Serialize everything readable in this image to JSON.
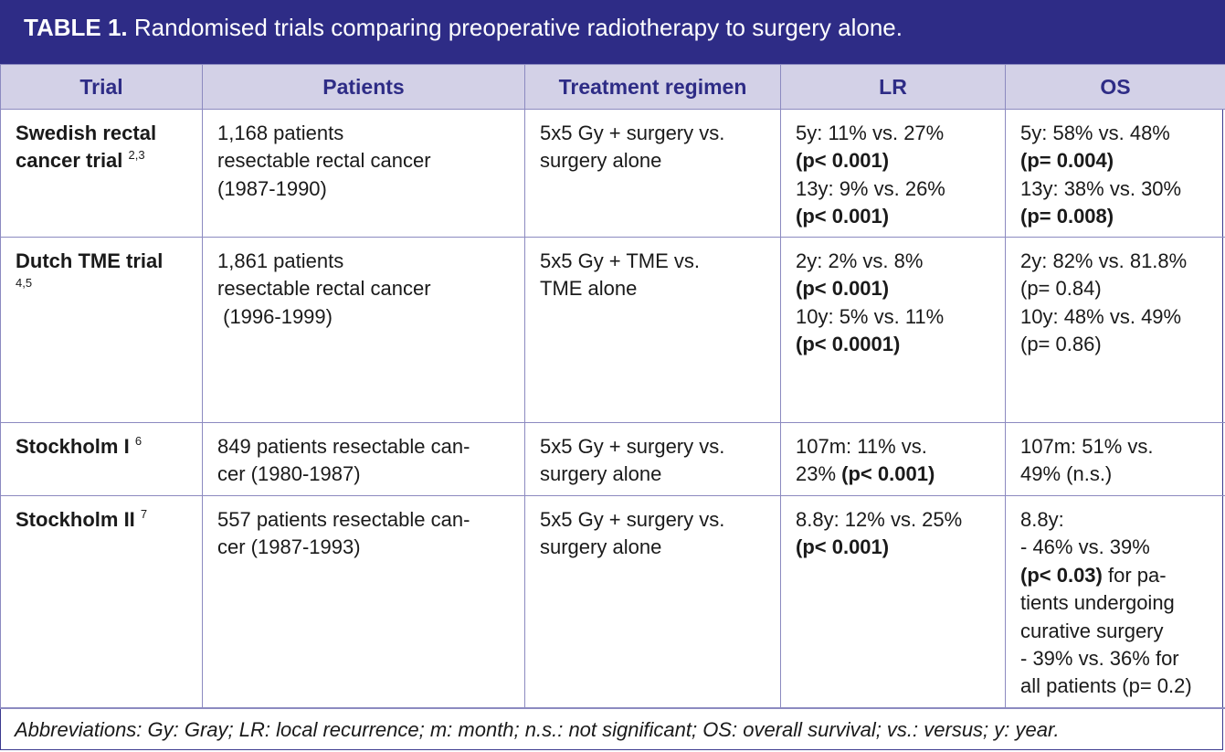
{
  "title": {
    "label": "TABLE 1.",
    "text": "Randomised trials comparing preoperative radiotherapy to surgery alone."
  },
  "headers": [
    "Trial",
    "Patients",
    "Treatment regimen",
    "LR",
    "OS"
  ],
  "rows": [
    {
      "trial_lines": [
        "Swedish rectal",
        "cancer trial"
      ],
      "trial_refs": "2,3",
      "patients": [
        "1,168 patients",
        "resectable rectal cancer",
        "(1987-1990)"
      ],
      "treatment": [
        "5x5 Gy + surgery vs.",
        "surgery alone"
      ],
      "lr": [
        "5y: 11% vs. 27%",
        "(p< 0.001)",
        "13y: 9% vs. 26%",
        "(p< 0.001)"
      ],
      "os": [
        "5y: 58% vs. 48%",
        "(p= 0.004)",
        "13y: 38% vs. 30%",
        "(p= 0.008)"
      ]
    },
    {
      "trial_lines": [
        "Dutch TME trial"
      ],
      "trial_refs": "4,5",
      "patients": [
        "1,861 patients",
        "resectable rectal cancer",
        " (1996-1999)"
      ],
      "treatment": [
        "5x5 Gy + TME vs.",
        "TME alone"
      ],
      "lr": [
        "2y: 2% vs. 8%",
        "(p< 0.001)",
        "10y: 5% vs. 11%",
        "(p< 0.0001)"
      ],
      "os": [
        "2y: 82% vs. 81.8%",
        "(p= 0.84)",
        "10y: 48% vs. 49%",
        "(p= 0.86)"
      ]
    },
    {
      "trial_lines": [
        "Stockholm I"
      ],
      "trial_refs": "6",
      "patients": [
        "849 patients resectable can-",
        "cer (1980-1987)"
      ],
      "treatment": [
        "5x5 Gy + surgery vs.",
        "surgery alone"
      ],
      "lr": [
        "107m: 11% vs.",
        "23%",
        "(p< 0.001)"
      ],
      "os": [
        "107m: 51% vs.",
        "49% (n.s.)"
      ]
    },
    {
      "trial_lines": [
        "Stockholm II"
      ],
      "trial_refs": "7",
      "patients": [
        "557 patients resectable can-",
        "cer (1987-1993)"
      ],
      "treatment": [
        "5x5 Gy + surgery vs.",
        "surgery alone"
      ],
      "lr": [
        "8.8y: 12% vs. 25%",
        "(p< 0.001)"
      ],
      "os": [
        "8.8y:",
        "- 46% vs. 39%",
        "(p< 0.03)",
        " for pa-",
        "tients undergoing",
        "curative surgery",
        "- 39% vs. 36% for",
        "all patients (p= 0.2)"
      ]
    }
  ],
  "footnote": "Abbreviations: Gy: Gray; LR: local recurrence; m: month; n.s.: not significant; OS: overall survival; vs.: versus; y: year."
}
